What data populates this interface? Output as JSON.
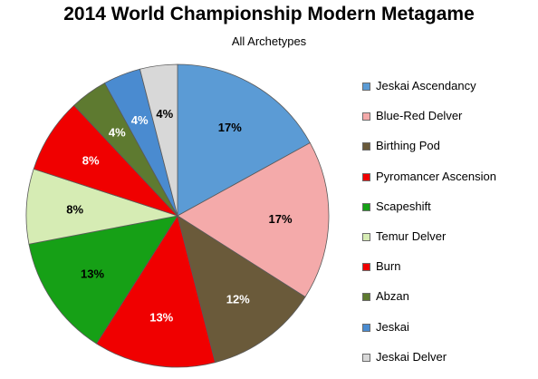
{
  "chart_data": {
    "type": "pie",
    "title": "2014 World Championship Modern Metagame",
    "subtitle": "All Archetypes",
    "legend_position": "right",
    "slices": [
      {
        "label": "Jeskai Ascendancy",
        "value": 17,
        "display": "17%",
        "color": "#5b9bd5",
        "text_color": "#000000"
      },
      {
        "label": "Blue-Red Delver",
        "value": 17,
        "display": "17%",
        "color": "#f4aaaa",
        "text_color": "#000000"
      },
      {
        "label": "Birthing Pod",
        "value": 12,
        "display": "12%",
        "color": "#6a5a3a",
        "text_color": "#ffffff"
      },
      {
        "label": "Pyromancer Ascension",
        "value": 13,
        "display": "13%",
        "color": "#f00000",
        "text_color": "#ffffff"
      },
      {
        "label": "Scapeshift",
        "value": 13,
        "display": "13%",
        "color": "#16a016",
        "text_color": "#000000"
      },
      {
        "label": "Temur Delver",
        "value": 8,
        "display": "8%",
        "color": "#d6ecb4",
        "text_color": "#000000"
      },
      {
        "label": "Burn",
        "value": 8,
        "display": "8%",
        "color": "#f00000",
        "text_color": "#ffffff"
      },
      {
        "label": "Abzan",
        "value": 4,
        "display": "4%",
        "color": "#5e7a30",
        "text_color": "#ffffff"
      },
      {
        "label": "Jeskai",
        "value": 4,
        "display": "4%",
        "color": "#4a8bd0",
        "text_color": "#ffffff"
      },
      {
        "label": "Jeskai Delver",
        "value": 4,
        "display": "4%",
        "color": "#d8d8d8",
        "text_color": "#000000"
      }
    ]
  }
}
